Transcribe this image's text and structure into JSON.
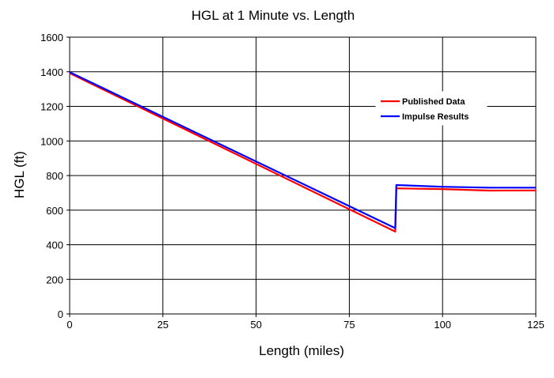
{
  "chart_data": {
    "type": "line",
    "title": "HGL at 1 Minute vs. Length",
    "xlabel": "Length (miles)",
    "ylabel": "HGL (ft)",
    "xlim": [
      0,
      125
    ],
    "ylim": [
      0,
      1600
    ],
    "x_ticks": [
      0,
      25,
      50,
      75,
      100,
      125
    ],
    "y_ticks": [
      0,
      200,
      400,
      600,
      800,
      1000,
      1200,
      1400,
      1600
    ],
    "x_tick_labels": [
      "0",
      "25",
      "50",
      "75",
      "100",
      "125"
    ],
    "y_tick_labels": [
      "0",
      "200",
      "400",
      "600",
      "800",
      "1000",
      "1200",
      "1400",
      "1600"
    ],
    "grid": true,
    "legend_position": "right",
    "series": [
      {
        "name": "Published Data",
        "color": "#ff0000",
        "points": [
          [
            0,
            1392
          ],
          [
            87.3,
            476
          ],
          [
            87.6,
            726
          ],
          [
            100,
            722
          ],
          [
            112.5,
            713
          ],
          [
            125,
            714
          ]
        ]
      },
      {
        "name": "Impulse Results",
        "color": "#0000ff",
        "points": [
          [
            0,
            1398
          ],
          [
            87.3,
            496
          ],
          [
            87.6,
            745
          ],
          [
            100,
            735
          ],
          [
            112.5,
            730
          ],
          [
            125,
            730
          ]
        ]
      }
    ]
  }
}
